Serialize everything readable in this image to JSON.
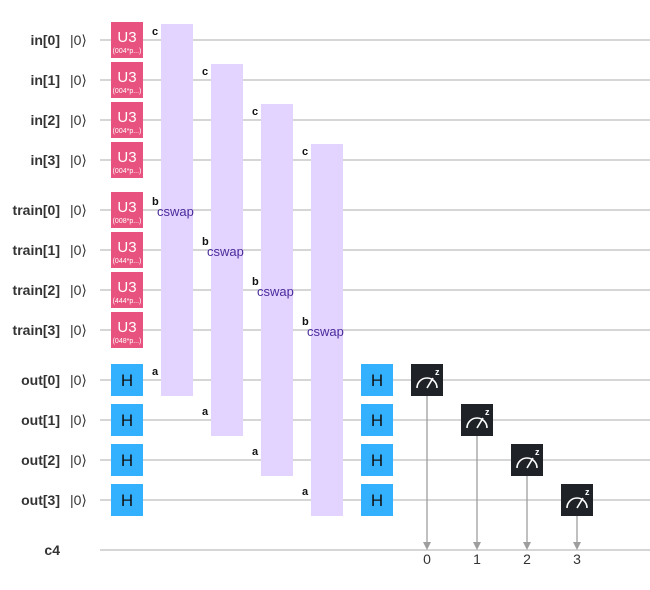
{
  "qubits": [
    {
      "name": "in[0]",
      "ket": "|0⟩"
    },
    {
      "name": "in[1]",
      "ket": "|0⟩"
    },
    {
      "name": "in[2]",
      "ket": "|0⟩"
    },
    {
      "name": "in[3]",
      "ket": "|0⟩"
    },
    {
      "name": "train[0]",
      "ket": "|0⟩"
    },
    {
      "name": "train[1]",
      "ket": "|0⟩"
    },
    {
      "name": "train[2]",
      "ket": "|0⟩"
    },
    {
      "name": "train[3]",
      "ket": "|0⟩"
    },
    {
      "name": "out[0]",
      "ket": "|0⟩"
    },
    {
      "name": "out[1]",
      "ket": "|0⟩"
    },
    {
      "name": "out[2]",
      "ket": "|0⟩"
    },
    {
      "name": "out[3]",
      "ket": "|0⟩"
    }
  ],
  "classical": {
    "name": "c4"
  },
  "u3_gates": [
    {
      "label": "U3",
      "params": "(004*p...)"
    },
    {
      "label": "U3",
      "params": "(004*p...)"
    },
    {
      "label": "U3",
      "params": "(004*p...)"
    },
    {
      "label": "U3",
      "params": "(004*p...)"
    },
    {
      "label": "U3",
      "params": "(008*p...)"
    },
    {
      "label": "U3",
      "params": "(044*p...)"
    },
    {
      "label": "U3",
      "params": "(444*p...)"
    },
    {
      "label": "U3",
      "params": "(048*p...)"
    }
  ],
  "h_label": "H",
  "cswaps": [
    {
      "label": "cswap",
      "port_a": "a",
      "port_b": "b",
      "port_c": "c"
    },
    {
      "label": "cswap",
      "port_a": "a",
      "port_b": "b",
      "port_c": "c"
    },
    {
      "label": "cswap",
      "port_a": "a",
      "port_b": "b",
      "port_c": "c"
    },
    {
      "label": "cswap",
      "port_a": "a",
      "port_b": "b",
      "port_c": "c"
    }
  ],
  "measure_axis": "z",
  "measure_bits": [
    "0",
    "1",
    "2",
    "3"
  ],
  "colors": {
    "u3": "#e8527f",
    "h": "#33b1ff",
    "cswap": "#e3d4ff",
    "cswap_text": "#4a2a9a",
    "measure": "#1f2328",
    "wire": "#bdbdbd",
    "classical_line": "#9e9e9e"
  }
}
